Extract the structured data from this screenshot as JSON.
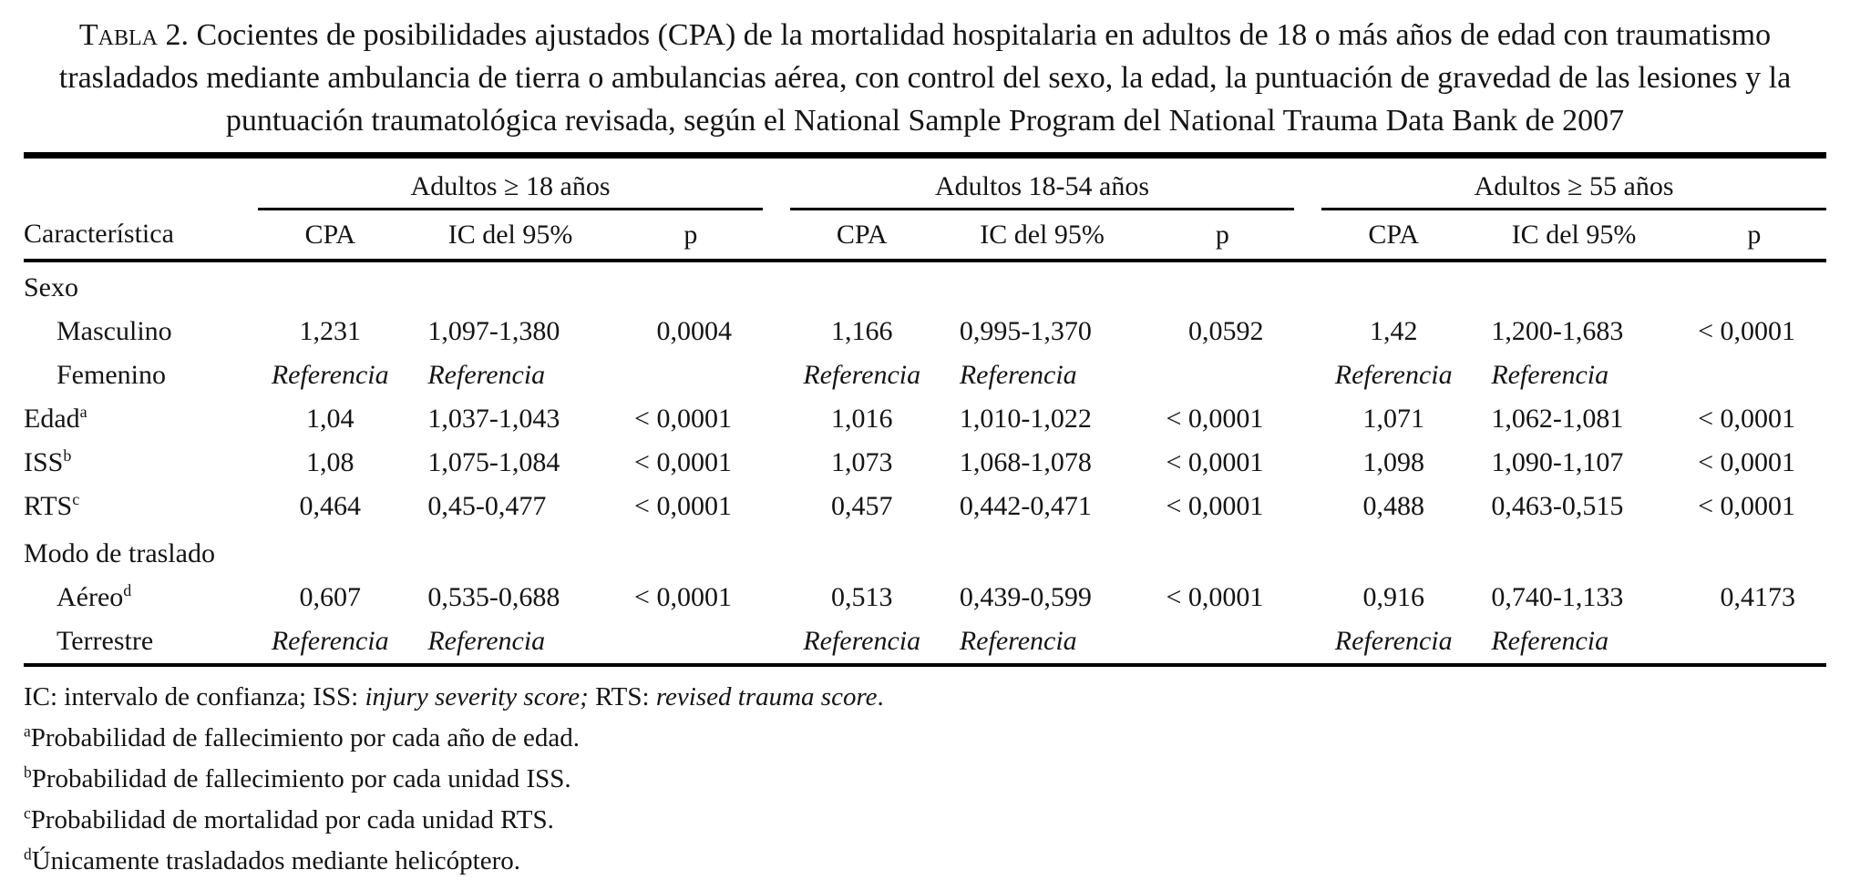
{
  "title": {
    "label": "Tabla 2.",
    "text": " Cocientes de posibilidades ajustados (CPA) de la mortalidad hospitalaria en adultos de 18 o más años de edad con traumatismo trasladados mediante ambulancia de tierra o ambulancias aérea, con control del sexo, la edad, la puntuación de gravedad de las lesiones y la puntuación traumatológica revisada, según el National Sample Program del National Trauma Data Bank de 2007"
  },
  "table": {
    "row_header": "Característica",
    "groups": [
      {
        "label": "Adultos ≥ 18 años"
      },
      {
        "label": "Adultos 18-54 años"
      },
      {
        "label": "Adultos ≥ 55 años"
      }
    ],
    "columns": [
      "CPA",
      "IC del 95%",
      "p"
    ],
    "rows": [
      {
        "type": "section",
        "label": "Sexo"
      },
      {
        "type": "data",
        "indent": true,
        "label": "Masculino",
        "sup": "",
        "italic": false,
        "cells": [
          "1,231",
          "1,097-1,380",
          "0,0004",
          "1,166",
          "0,995-1,370",
          "0,0592",
          "1,42",
          "1,200-1,683",
          "< 0,0001"
        ]
      },
      {
        "type": "data",
        "indent": true,
        "label": "Femenino",
        "sup": "",
        "italic": true,
        "cells": [
          "Referencia",
          "Referencia",
          "",
          "Referencia",
          "Referencia",
          "",
          "Referencia",
          "Referencia",
          ""
        ]
      },
      {
        "type": "data",
        "indent": false,
        "label": "Edad",
        "sup": "a",
        "italic": false,
        "cells": [
          "1,04",
          "1,037-1,043",
          "< 0,0001",
          "1,016",
          "1,010-1,022",
          "< 0,0001",
          "1,071",
          "1,062-1,081",
          "< 0,0001"
        ]
      },
      {
        "type": "data",
        "indent": false,
        "label": "ISS",
        "sup": "b",
        "italic": false,
        "cells": [
          "1,08",
          "1,075-1,084",
          "< 0,0001",
          "1,073",
          "1,068-1,078",
          "< 0,0001",
          "1,098",
          "1,090-1,107",
          "< 0,0001"
        ]
      },
      {
        "type": "data",
        "indent": false,
        "label": "RTS",
        "sup": "c",
        "italic": false,
        "cells": [
          "0,464",
          "0,45-0,477",
          "< 0,0001",
          "0,457",
          "0,442-0,471",
          "< 0,0001",
          "0,488",
          "0,463-0,515",
          "< 0,0001"
        ]
      },
      {
        "type": "section",
        "label": "Modo de traslado"
      },
      {
        "type": "data",
        "indent": true,
        "label": "Aéreo",
        "sup": "d",
        "italic": false,
        "cells": [
          "0,607",
          "0,535-0,688",
          "< 0,0001",
          "0,513",
          "0,439-0,599",
          "< 0,0001",
          "0,916",
          "0,740-1,133",
          "0,4173"
        ]
      },
      {
        "type": "data",
        "indent": true,
        "label": "Terrestre",
        "sup": "",
        "italic": true,
        "cells": [
          "Referencia",
          "Referencia",
          "",
          "Referencia",
          "Referencia",
          "",
          "Referencia",
          "Referencia",
          ""
        ]
      }
    ]
  },
  "footnotes": [
    {
      "marker": "",
      "parts": [
        {
          "t": "IC: intervalo de confianza; ISS: ",
          "i": false
        },
        {
          "t": "injury severity score;",
          "i": true
        },
        {
          "t": " RTS: ",
          "i": false
        },
        {
          "t": "revised trauma score",
          "i": true
        },
        {
          "t": ".",
          "i": false
        }
      ]
    },
    {
      "marker": "a",
      "parts": [
        {
          "t": "Probabilidad de fallecimiento por cada año de edad.",
          "i": false
        }
      ]
    },
    {
      "marker": "b",
      "parts": [
        {
          "t": "Probabilidad de fallecimiento por cada unidad ISS.",
          "i": false
        }
      ]
    },
    {
      "marker": "c",
      "parts": [
        {
          "t": "Probabilidad de mortalidad por cada unidad RTS.",
          "i": false
        }
      ]
    },
    {
      "marker": "d",
      "parts": [
        {
          "t": "Únicamente trasladados mediante helicóptero.",
          "i": false
        }
      ]
    }
  ]
}
